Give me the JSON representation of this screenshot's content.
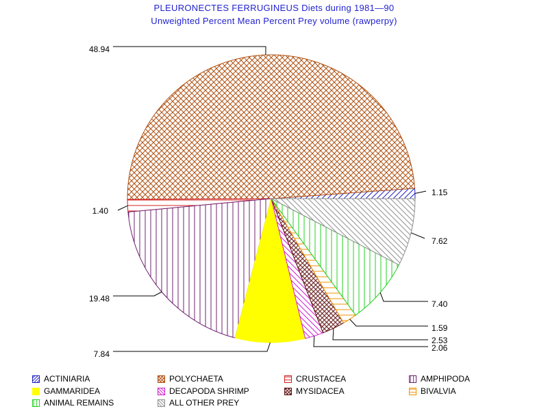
{
  "title": "PLEURONECTES FERRUGINEUS Diets during 1981—90",
  "subtitle": "Unweighted Percent Mean Percent Prey  volume (rawperpy)",
  "chart_data": {
    "type": "pie",
    "start_angle_deg": 0,
    "direction": "counterclockwise",
    "slices": [
      {
        "name": "ACTINIARIA",
        "value": 1.15,
        "label": "1.15",
        "color": "#2020c0",
        "pattern": "diag-forward"
      },
      {
        "name": "POLYCHAETA",
        "value": 48.94,
        "label": "48.94",
        "color": "#b05010",
        "pattern": "crosshatch"
      },
      {
        "name": "CRUSTACEA",
        "value": 1.4,
        "label": "1.40",
        "color": "#d02020",
        "pattern": "horizontal"
      },
      {
        "name": "AMPHIPODA",
        "value": 19.48,
        "label": "19.48",
        "color": "#702070",
        "pattern": "vertical"
      },
      {
        "name": "GAMMARIDEA",
        "value": 7.84,
        "label": "7.84",
        "color": "#ffff00",
        "pattern": "solid"
      },
      {
        "name": "DECAPODA SHRIMP",
        "value": 2.06,
        "label": "2.06",
        "color": "#d020d0",
        "pattern": "diag-back"
      },
      {
        "name": "MYSIDACEA",
        "value": 2.53,
        "label": "2.53",
        "color": "#601010",
        "pattern": "crosshatch-dense"
      },
      {
        "name": "BIVALVIA",
        "value": 1.59,
        "label": "1.59",
        "color": "#f09000",
        "pattern": "horizontal"
      },
      {
        "name": "ANIMAL REMAINS",
        "value": 7.4,
        "label": "7.40",
        "color": "#20d020",
        "pattern": "vertical"
      },
      {
        "name": "ALL OTHER PREY",
        "value": 7.62,
        "label": "7.62",
        "color": "#909090",
        "pattern": "diag-back"
      }
    ]
  }
}
